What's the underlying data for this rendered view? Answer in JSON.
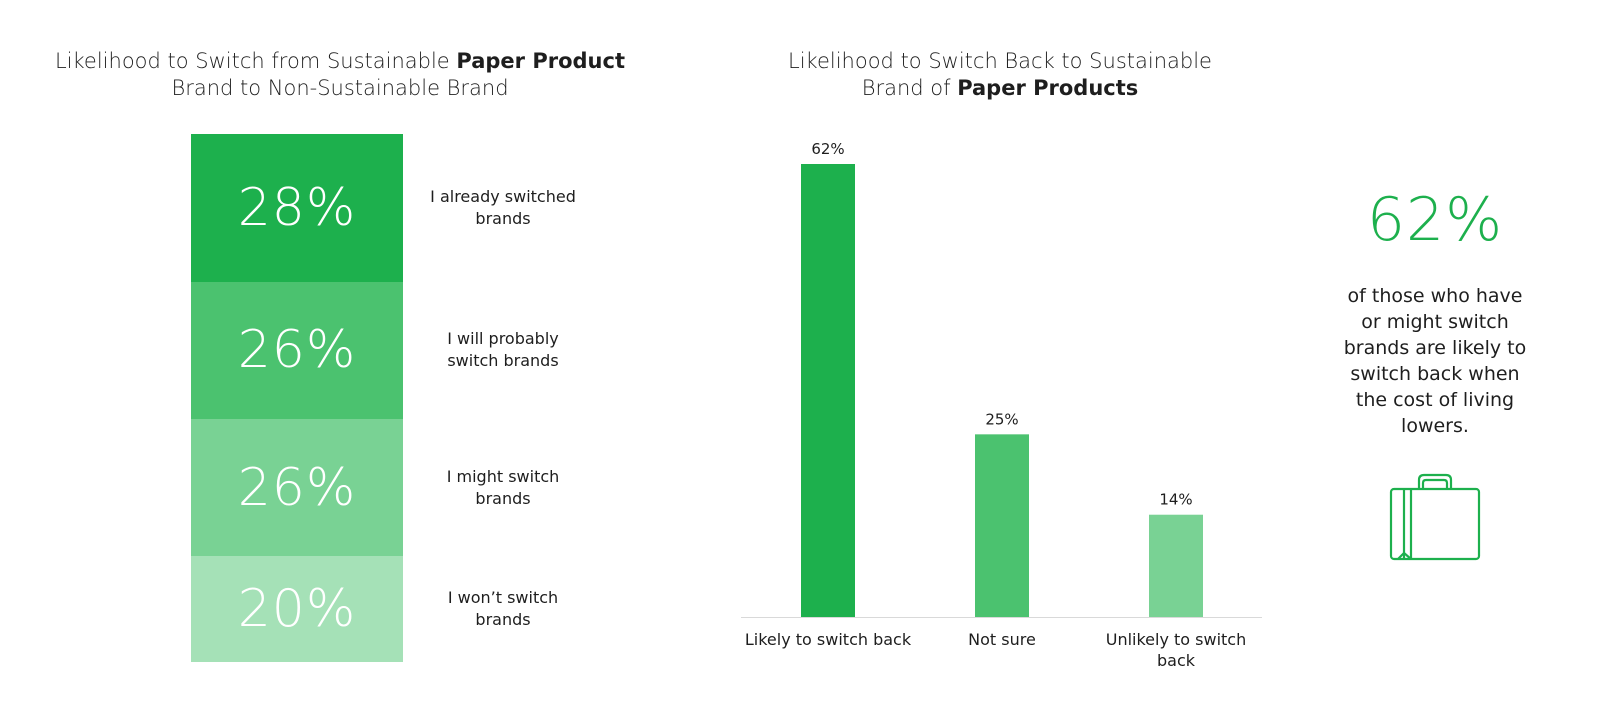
{
  "left_chart": {
    "title_part1": "Likelihood to Switch from Sustainable ",
    "title_bold": "Paper Product",
    "title_part2": "Brand to Non-Sustainable Brand"
  },
  "right_chart": {
    "title_part1": "Likelihood to Switch Back to Sustainable",
    "title_part2": "Brand of ",
    "title_bold": "Paper Products"
  },
  "callout": {
    "value": "62%",
    "text": "of those who have or might switch brands are likely to switch back when the cost of living lowers.",
    "icon": "suitcase-icon",
    "color": "#1db04d"
  },
  "chart_data": [
    {
      "type": "bar",
      "stacked": true,
      "title": "Likelihood to Switch from Sustainable Paper Product Brand to Non-Sustainable Brand",
      "categories": [
        "I already switched brands",
        "I will probably switch brands",
        "I might switch brands",
        "I won’t switch brands"
      ],
      "values": [
        28,
        26,
        26,
        20
      ],
      "labels": [
        "28%",
        "26%",
        "26%",
        "20%"
      ],
      "colors": [
        "#1db04d",
        "#4bc26f",
        "#79d294",
        "#a5e1b7"
      ]
    },
    {
      "type": "bar",
      "title": "Likelihood to Switch Back to Sustainable Brand of Paper Products",
      "categories": [
        "Likely to switch back",
        "Not sure",
        "Unlikely to switch back"
      ],
      "category_lines": [
        [
          "Likely to switch back"
        ],
        [
          "Not sure"
        ],
        [
          "Unlikely to switch",
          "back"
        ]
      ],
      "values": [
        62,
        25,
        14
      ],
      "labels": [
        "62%",
        "25%",
        "14%"
      ],
      "colors": [
        "#1db04d",
        "#4bc26f",
        "#79d294"
      ],
      "ylim": [
        0,
        62
      ],
      "grid": false
    }
  ]
}
